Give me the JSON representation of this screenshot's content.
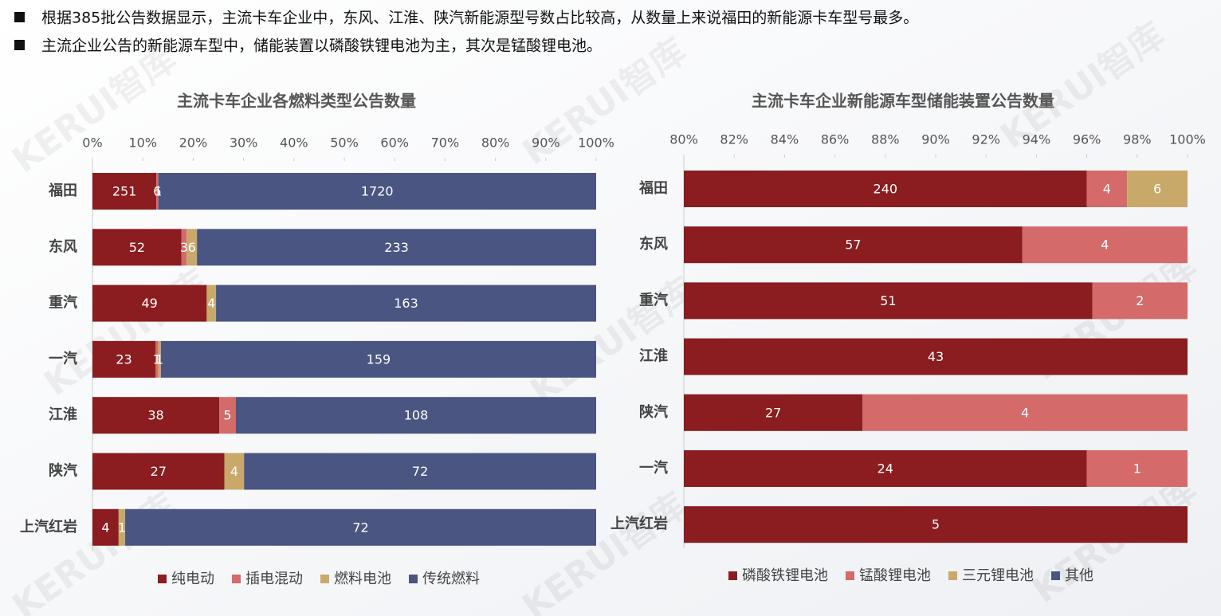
{
  "header": {
    "bullets": [
      "根据385批公告数据显示，主流卡车企业中，东风、江淮、陕汽新能源型号数占比较高，从数量上来说福田的新能源卡车型号最多。",
      "主流企业公告的新能源车型中，储能装置以磷酸铁锂电池为主，其次是锰酸锂电池。"
    ]
  },
  "watermark": "KERUI智库",
  "chart_data": [
    {
      "type": "bar",
      "orientation": "horizontal",
      "stacked": "percent",
      "legend": "bottom",
      "title": "主流卡车企业各燃料类型公告数量",
      "categories": [
        "福田",
        "东风",
        "重汽",
        "一汽",
        "江淮",
        "陕汽",
        "上汽红岩"
      ],
      "series": [
        {
          "name": "纯电动",
          "color": "#8b1c1f",
          "values": [
            251,
            52,
            49,
            23,
            38,
            27,
            4
          ]
        },
        {
          "name": "插电混动",
          "color": "#d46a6a",
          "values": [
            6,
            3,
            null,
            1,
            5,
            null,
            null
          ]
        },
        {
          "name": "燃料电池",
          "color": "#c9a96a",
          "values": [
            1,
            6,
            4,
            1,
            null,
            4,
            1
          ]
        },
        {
          "name": "传统燃料",
          "color": "#4a5582",
          "values": [
            1720,
            233,
            163,
            159,
            108,
            72,
            72
          ]
        }
      ],
      "xlim": [
        0,
        100
      ],
      "xticks": [
        {
          "value": 0,
          "label": "0%"
        },
        {
          "value": 10,
          "label": "10%"
        },
        {
          "value": 20,
          "label": "20%"
        },
        {
          "value": 30,
          "label": "30%"
        },
        {
          "value": 40,
          "label": "40%"
        },
        {
          "value": 50,
          "label": "50%"
        },
        {
          "value": 60,
          "label": "60%"
        },
        {
          "value": 70,
          "label": "70%"
        },
        {
          "value": 80,
          "label": "80%"
        },
        {
          "value": 90,
          "label": "90%"
        },
        {
          "value": 100,
          "label": "100%"
        }
      ]
    },
    {
      "type": "bar",
      "orientation": "horizontal",
      "stacked": "percent",
      "legend": "bottom",
      "title": "主流卡车企业新能源车型储能装置公告数量",
      "categories": [
        "福田",
        "东风",
        "重汽",
        "江淮",
        "陕汽",
        "一汽",
        "上汽红岩"
      ],
      "series": [
        {
          "name": "磷酸铁锂电池",
          "color": "#8b1c1f",
          "values": [
            240,
            57,
            51,
            43,
            27,
            24,
            5
          ]
        },
        {
          "name": "锰酸锂电池",
          "color": "#d46a6a",
          "values": [
            4,
            4,
            2,
            null,
            4,
            1,
            null
          ]
        },
        {
          "name": "三元锂电池",
          "color": "#c9a96a",
          "values": [
            6,
            null,
            null,
            null,
            null,
            null,
            null
          ]
        },
        {
          "name": "其他",
          "color": "#4a5582",
          "values": [
            null,
            null,
            null,
            null,
            null,
            null,
            null
          ]
        }
      ],
      "xlim": [
        80,
        100
      ],
      "xticks": [
        {
          "value": 80,
          "label": "80%"
        },
        {
          "value": 82,
          "label": "82%"
        },
        {
          "value": 84,
          "label": "84%"
        },
        {
          "value": 86,
          "label": "86%"
        },
        {
          "value": 88,
          "label": "88%"
        },
        {
          "value": 90,
          "label": "90%"
        },
        {
          "value": 92,
          "label": "92%"
        },
        {
          "value": 94,
          "label": "94%"
        },
        {
          "value": 96,
          "label": "96%"
        },
        {
          "value": 98,
          "label": "98%"
        },
        {
          "value": 100,
          "label": "100%"
        }
      ]
    }
  ]
}
